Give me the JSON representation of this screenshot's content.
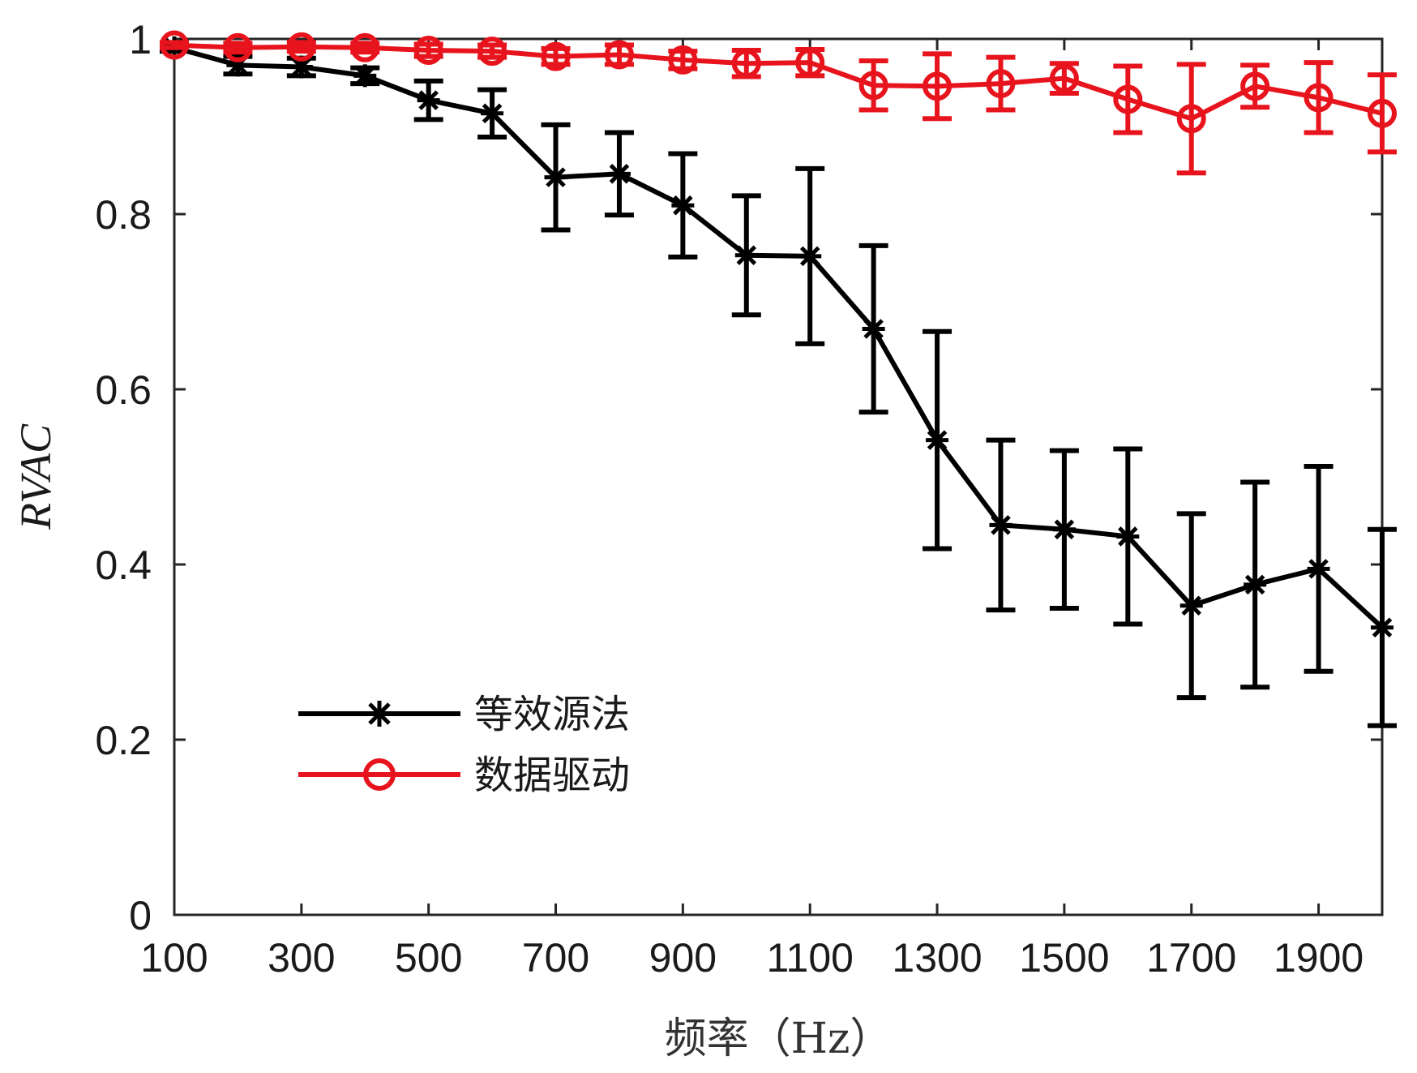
{
  "chart_data": {
    "type": "line",
    "title": "",
    "xlabel": "频率（Hz）",
    "ylabel": "RVAC",
    "xlim": [
      100,
      2000
    ],
    "ylim": [
      0,
      1
    ],
    "x_ticks": [
      100,
      300,
      500,
      700,
      900,
      1100,
      1300,
      1500,
      1700,
      1900
    ],
    "y_ticks": [
      0,
      0.2,
      0.4,
      0.6,
      0.8,
      1
    ],
    "y_tick_labels": [
      "0",
      "0.2",
      "0.4",
      "0.6",
      "0.8",
      "1"
    ],
    "grid": false,
    "legend_position": "lower-left",
    "x": [
      100,
      200,
      300,
      400,
      500,
      600,
      700,
      800,
      900,
      1000,
      1100,
      1200,
      1300,
      1400,
      1500,
      1600,
      1700,
      1800,
      1900,
      2000
    ],
    "series": [
      {
        "name": "等效源法",
        "color": "#000000",
        "marker": "asterisk",
        "values": [
          0.99,
          0.97,
          0.968,
          0.958,
          0.93,
          0.915,
          0.842,
          0.846,
          0.81,
          0.753,
          0.752,
          0.669,
          0.542,
          0.445,
          0.44,
          0.432,
          0.353,
          0.377,
          0.395,
          0.328
        ],
        "errors": [
          0.004,
          0.01,
          0.01,
          0.009,
          0.022,
          0.027,
          0.06,
          0.047,
          0.059,
          0.068,
          0.1,
          0.095,
          0.124,
          0.097,
          0.09,
          0.1,
          0.105,
          0.117,
          0.117,
          0.112
        ]
      },
      {
        "name": "数据驱动",
        "color": "#e8141d",
        "marker": "circle",
        "values": [
          0.993,
          0.99,
          0.991,
          0.99,
          0.987,
          0.986,
          0.98,
          0.982,
          0.976,
          0.972,
          0.973,
          0.947,
          0.946,
          0.949,
          0.955,
          0.931,
          0.909,
          0.946,
          0.933,
          0.915
        ],
        "errors": [
          0.003,
          0.005,
          0.005,
          0.005,
          0.007,
          0.007,
          0.009,
          0.011,
          0.01,
          0.015,
          0.015,
          0.028,
          0.037,
          0.03,
          0.017,
          0.038,
          0.062,
          0.024,
          0.04,
          0.044
        ]
      }
    ]
  }
}
